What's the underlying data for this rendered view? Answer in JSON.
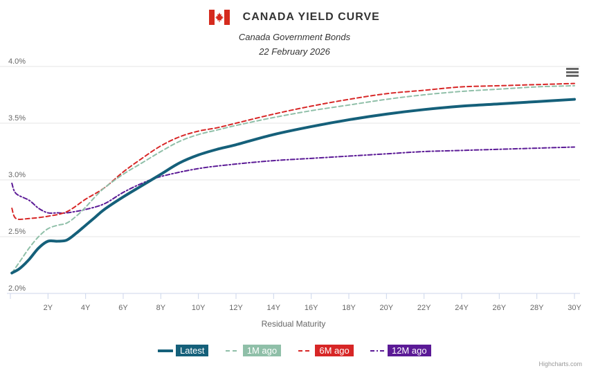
{
  "header": {
    "title": "CANADA YIELD CURVE",
    "subtitle": "Canada Government Bonds",
    "date": "22 February 2026",
    "flag_icon": "canada-flag-icon"
  },
  "credits": "Highcharts.com",
  "colors": {
    "latest": "#15607a",
    "m1": "#8fbfa8",
    "m6": "#d72626",
    "m12": "#5b1a96",
    "grid": "#e6e6e6"
  },
  "chart_data": {
    "type": "line",
    "title": "CANADA YIELD CURVE",
    "subtitle": "Canada Government Bonds",
    "xlabel": "Residual Maturity",
    "ylabel": "",
    "xlim": [
      0,
      30
    ],
    "ylim": [
      2.0,
      4.0
    ],
    "x_ticks": [
      2,
      4,
      6,
      8,
      10,
      12,
      14,
      16,
      18,
      20,
      22,
      24,
      26,
      28,
      30
    ],
    "x_tick_labels": [
      "2Y",
      "4Y",
      "6Y",
      "8Y",
      "10Y",
      "12Y",
      "14Y",
      "16Y",
      "18Y",
      "20Y",
      "22Y",
      "24Y",
      "26Y",
      "28Y",
      "30Y"
    ],
    "y_ticks": [
      2.0,
      2.5,
      3.0,
      3.5,
      4.0
    ],
    "y_tick_labels": [
      "2.0%",
      "2.5%",
      "3.0%",
      "3.5%",
      "4.0%"
    ],
    "series": [
      {
        "name": "Latest",
        "key": "latest",
        "dash": "solid",
        "x": [
          0.08,
          0.5,
          1,
          1.5,
          2,
          2.5,
          3,
          3.5,
          4,
          4.5,
          5,
          6,
          7,
          8,
          9,
          10,
          11,
          12,
          14,
          16,
          18,
          20,
          22,
          24,
          26,
          28,
          30
        ],
        "values": [
          2.18,
          2.22,
          2.3,
          2.4,
          2.46,
          2.46,
          2.47,
          2.53,
          2.6,
          2.67,
          2.74,
          2.85,
          2.95,
          3.05,
          3.15,
          3.22,
          3.27,
          3.31,
          3.4,
          3.47,
          3.53,
          3.58,
          3.62,
          3.65,
          3.67,
          3.69,
          3.71
        ]
      },
      {
        "name": "1M ago",
        "key": "m1",
        "dash": "dash",
        "x": [
          0.08,
          0.5,
          1,
          1.5,
          2,
          2.5,
          3,
          3.5,
          4,
          4.5,
          5,
          6,
          7,
          8,
          9,
          10,
          11,
          12,
          14,
          16,
          18,
          20,
          22,
          24,
          26,
          28,
          30
        ],
        "values": [
          2.18,
          2.28,
          2.4,
          2.5,
          2.57,
          2.6,
          2.62,
          2.68,
          2.76,
          2.85,
          2.93,
          3.05,
          3.15,
          3.25,
          3.34,
          3.4,
          3.44,
          3.48,
          3.55,
          3.61,
          3.66,
          3.71,
          3.75,
          3.78,
          3.8,
          3.82,
          3.83
        ]
      },
      {
        "name": "6M ago",
        "key": "m6",
        "dash": "dash",
        "x": [
          0.08,
          0.3,
          1,
          2,
          3,
          4,
          5,
          6,
          7,
          8,
          9,
          10,
          11,
          12,
          14,
          16,
          18,
          20,
          22,
          24,
          26,
          28,
          30
        ],
        "values": [
          2.75,
          2.66,
          2.66,
          2.68,
          2.72,
          2.83,
          2.93,
          3.07,
          3.19,
          3.3,
          3.38,
          3.43,
          3.46,
          3.5,
          3.58,
          3.65,
          3.71,
          3.76,
          3.79,
          3.82,
          3.83,
          3.84,
          3.85
        ]
      },
      {
        "name": "12M ago",
        "key": "m12",
        "dash": "dashdot",
        "x": [
          0.08,
          0.3,
          1,
          1.5,
          2,
          2.5,
          3,
          4,
          5,
          6,
          7,
          8,
          10,
          12,
          14,
          16,
          18,
          20,
          22,
          24,
          26,
          28,
          30
        ],
        "values": [
          2.97,
          2.88,
          2.82,
          2.75,
          2.71,
          2.71,
          2.71,
          2.74,
          2.79,
          2.89,
          2.97,
          3.03,
          3.1,
          3.14,
          3.17,
          3.19,
          3.21,
          3.23,
          3.25,
          3.26,
          3.27,
          3.28,
          3.29
        ]
      }
    ]
  }
}
